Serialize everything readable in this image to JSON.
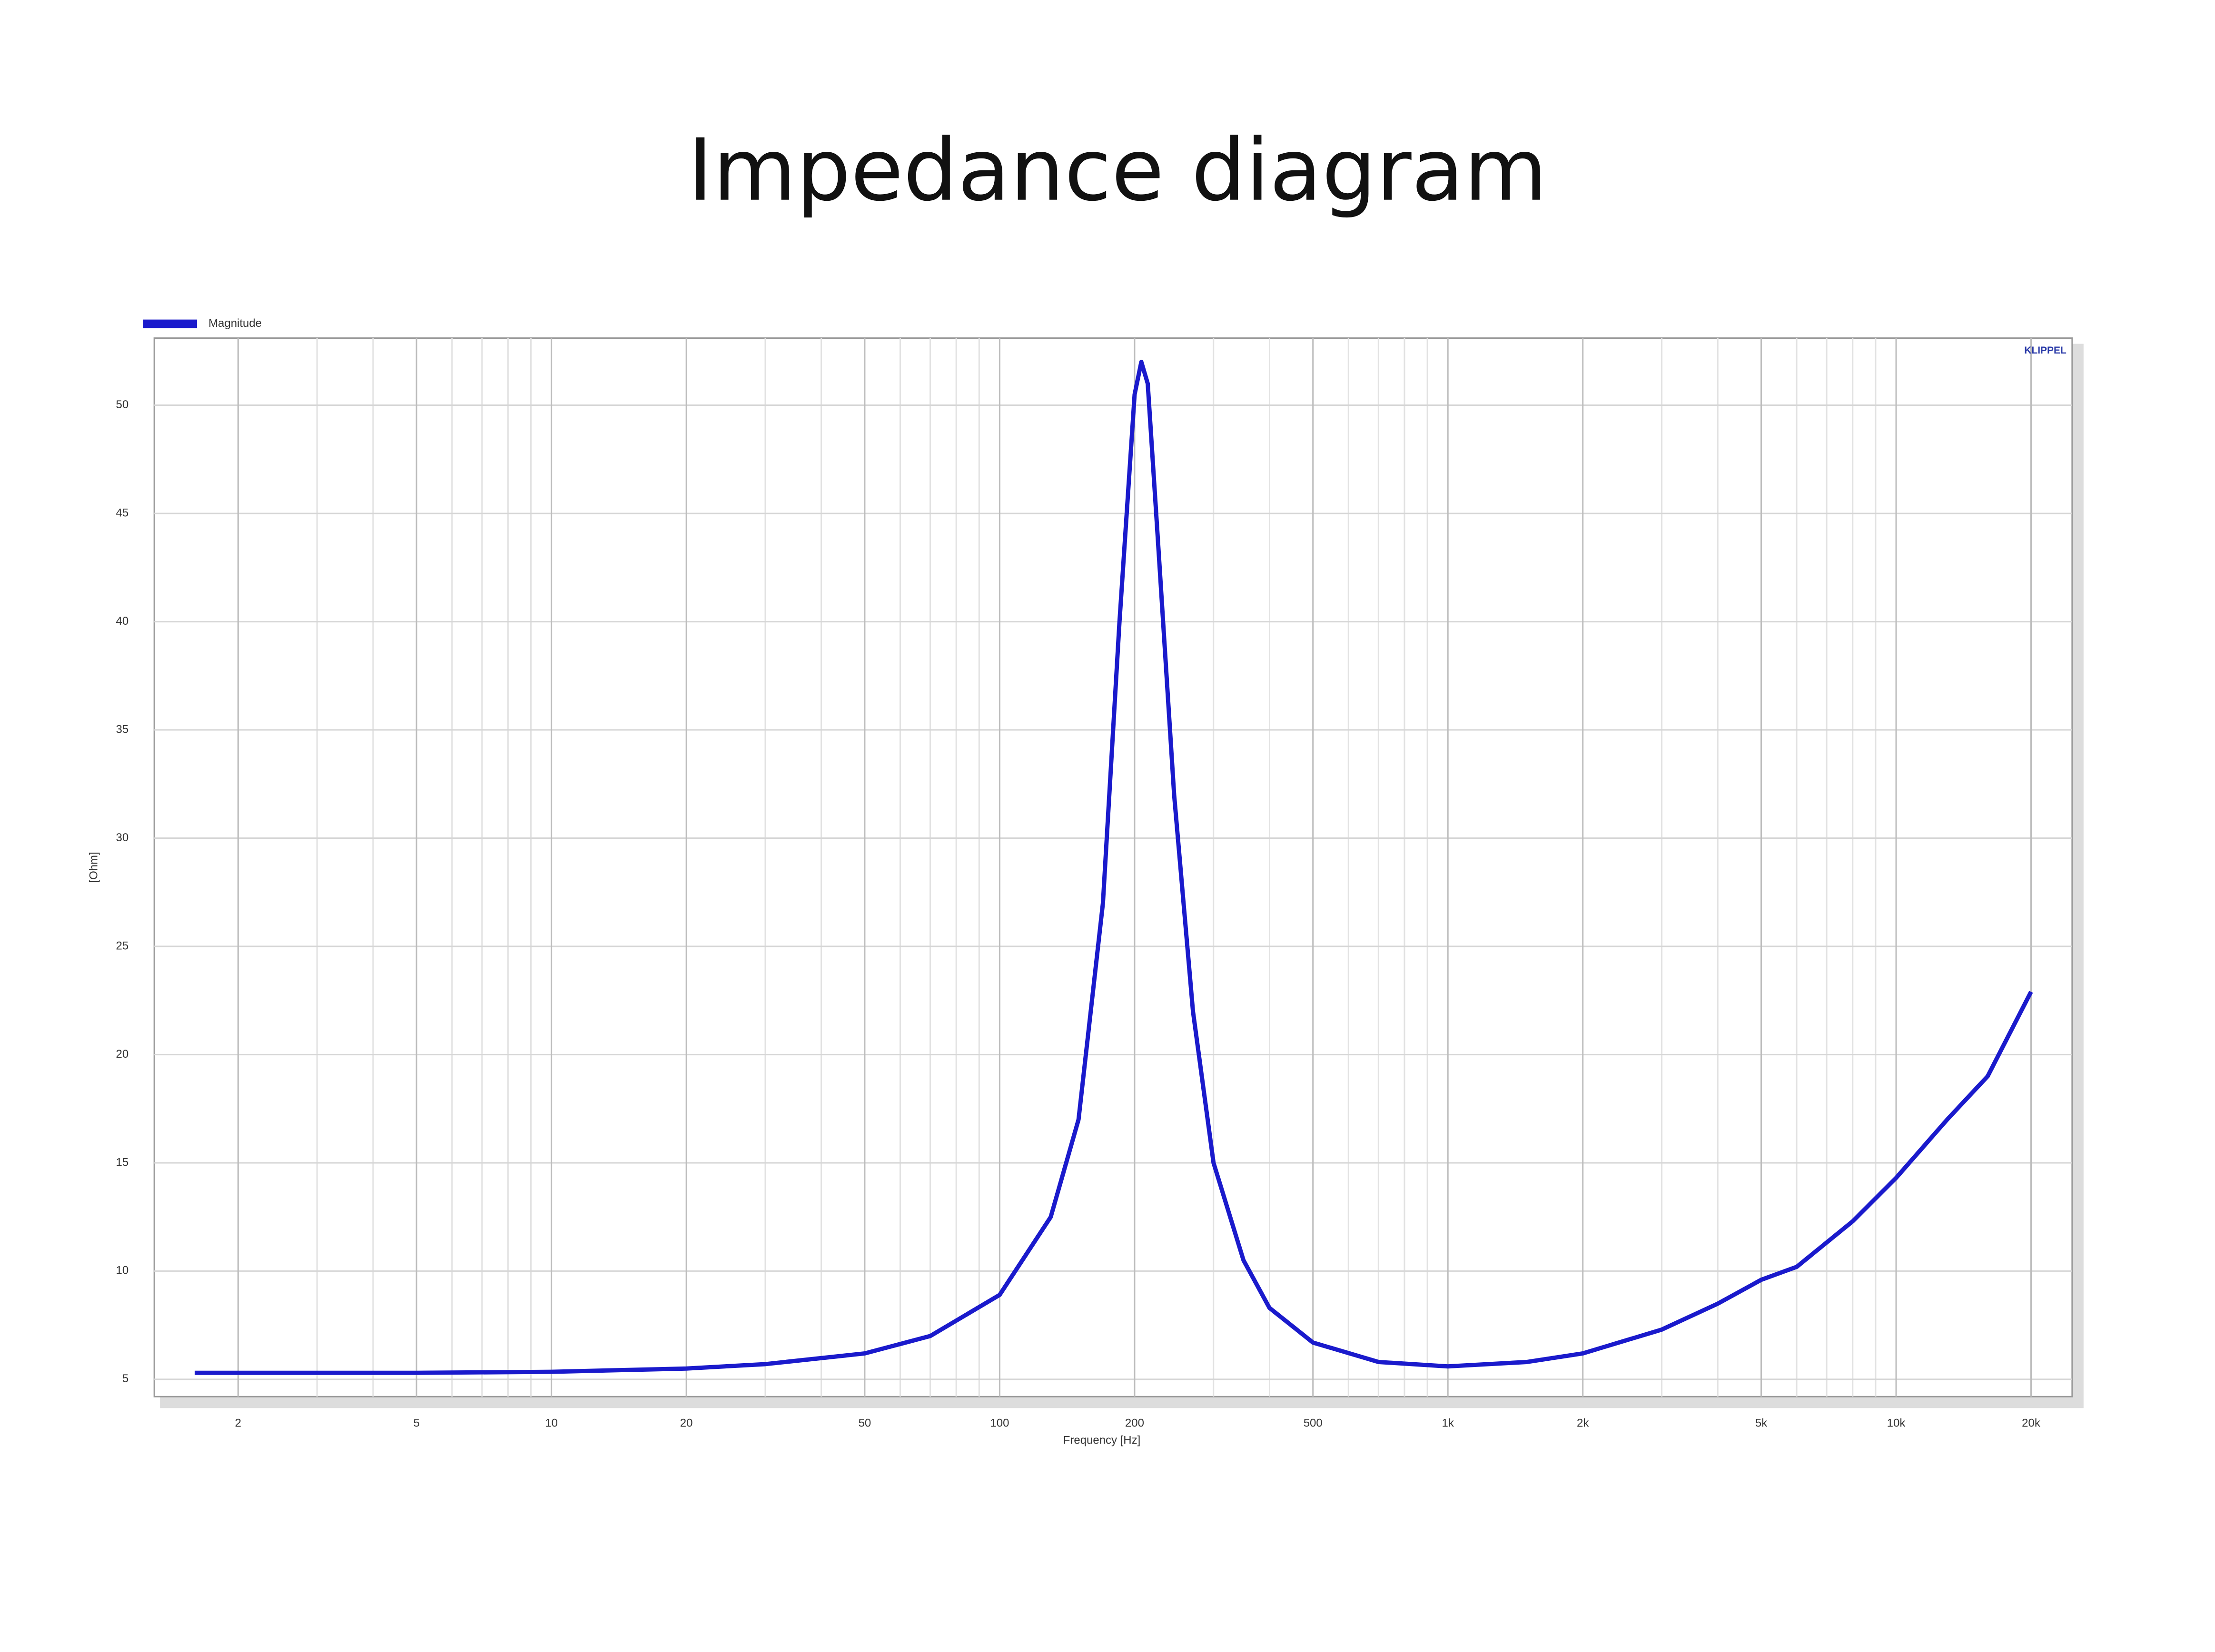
{
  "chart_data": {
    "type": "line",
    "title": "Impedance diagram",
    "xlabel": "Frequency [Hz]",
    "ylabel": "[Ohm]",
    "brand": "KLIPPEL",
    "xscale": "log",
    "grid": true,
    "legend": "top-left",
    "xlim": [
      1.3,
      24700
    ],
    "ylim": [
      4.2,
      53.1
    ],
    "xticks": [
      2,
      5,
      10,
      20,
      50,
      100,
      200,
      500,
      {
        "value": 1000,
        "label": "1k"
      },
      {
        "value": 2000,
        "label": "2k"
      },
      {
        "value": 5000,
        "label": "5k"
      },
      {
        "value": 10000,
        "label": "10k"
      },
      {
        "value": 20000,
        "label": "20k"
      }
    ],
    "xminorticks": [
      3,
      4,
      6,
      7,
      8,
      9,
      30,
      40,
      60,
      70,
      80,
      90,
      300,
      400,
      600,
      700,
      800,
      900,
      3000,
      4000,
      6000,
      7000,
      8000,
      9000
    ],
    "yticks": [
      5,
      10,
      15,
      20,
      25,
      30,
      35,
      40,
      45,
      50
    ],
    "x": [
      1.6,
      5,
      10,
      20,
      30,
      50,
      70,
      100,
      130,
      150,
      170,
      185,
      200,
      207,
      214,
      225,
      245,
      270,
      300,
      350,
      400,
      500,
      700,
      1000,
      1500,
      2000,
      3000,
      4000,
      5000,
      6000,
      8000,
      10000,
      13000,
      16000,
      20000
    ],
    "series": [
      {
        "name": "Magnitude",
        "color": "#1a1acc",
        "values": [
          5.3,
          5.3,
          5.35,
          5.5,
          5.7,
          6.2,
          7.0,
          8.9,
          12.5,
          17,
          27,
          40,
          50.5,
          52,
          51,
          44,
          32,
          22,
          15,
          10.5,
          8.3,
          6.7,
          5.8,
          5.6,
          5.8,
          6.2,
          7.3,
          8.5,
          9.6,
          10.2,
          12.3,
          14.3,
          17,
          19,
          22.9
        ]
      }
    ]
  }
}
